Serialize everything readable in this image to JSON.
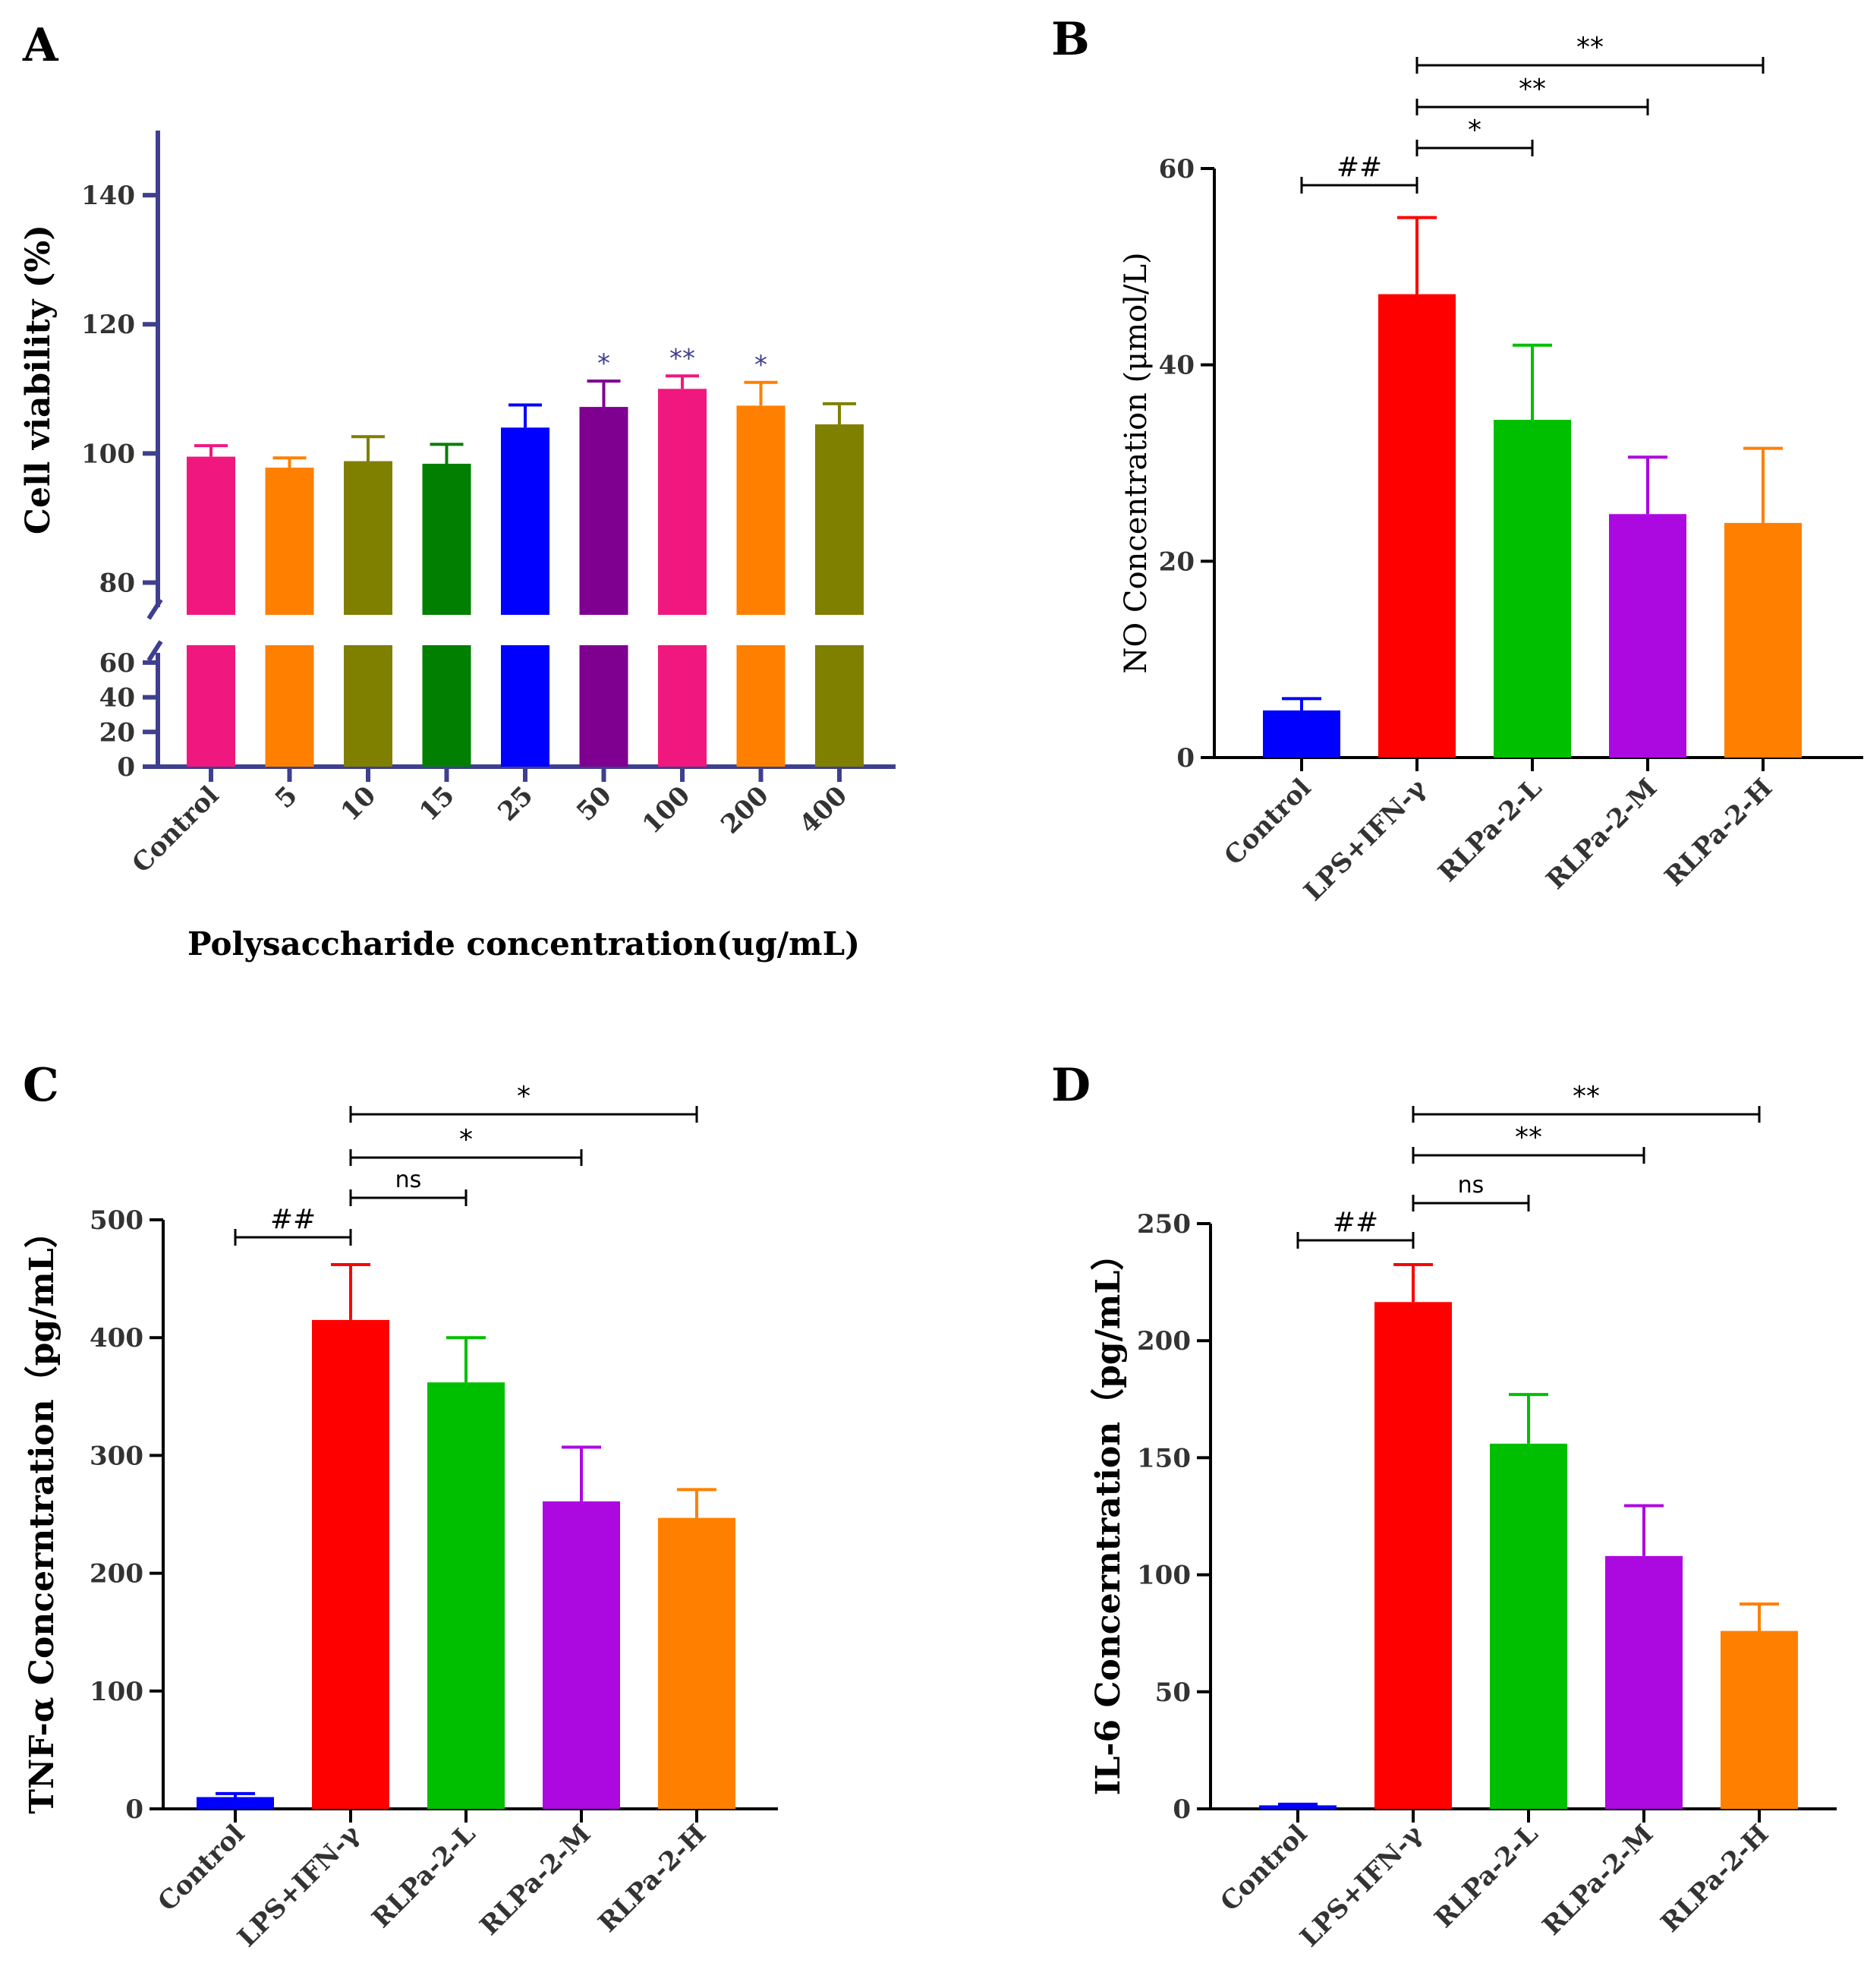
{
  "chart_data": [
    {
      "panel": "A",
      "type": "bar",
      "title": "",
      "xlabel": "Polysaccharide concentration(ug/mL)",
      "ylabel": "Cell viability (%)",
      "categories": [
        "Control",
        "5",
        "10",
        "15",
        "25",
        "50",
        "100",
        "200",
        "400"
      ],
      "values": [
        99.5,
        97.8,
        98.8,
        98.4,
        104,
        107.2,
        110,
        107.4,
        104.5
      ],
      "errors": [
        1.7,
        1.5,
        3.8,
        3.0,
        3.5,
        4.0,
        2.0,
        3.6,
        3.2
      ],
      "colors": [
        "#f0187e",
        "#ff8000",
        "#7f7f00",
        "#007f00",
        "#0000ff",
        "#7f0090",
        "#f0187e",
        "#ff8000",
        "#7f7f00"
      ],
      "significance": [
        "",
        "",
        "",
        "",
        "",
        "*",
        "**",
        "*",
        ""
      ],
      "axis_break": [
        70,
        75
      ],
      "ylim_lower": [
        0,
        70
      ],
      "ylim_upper": [
        75,
        150
      ],
      "yticks_lower": [
        0,
        20,
        40,
        60
      ],
      "yticks_upper": [
        80,
        100,
        120,
        140
      ]
    },
    {
      "panel": "B",
      "type": "bar",
      "title": "",
      "xlabel": "",
      "ylabel": "NO Concentration (μmol/L)",
      "categories": [
        "Control",
        "LPS+IFN-γ",
        "RLPa-2-L",
        "RLPa-2-M",
        "RLPa-2-H"
      ],
      "values": [
        4.8,
        47.2,
        34.4,
        24.8,
        23.9
      ],
      "errors": [
        1.2,
        7.8,
        7.6,
        5.8,
        7.6
      ],
      "colors": [
        "#0000ff",
        "#ff0000",
        "#00bf00",
        "#ac08e0",
        "#ff8000"
      ],
      "ylim": [
        0,
        60
      ],
      "yticks": [
        0,
        20,
        40,
        60
      ],
      "brackets": [
        {
          "from": 0,
          "to": 1,
          "label": "##",
          "level": 0
        },
        {
          "from": 1,
          "to": 2,
          "label": "*",
          "level": 1
        },
        {
          "from": 1,
          "to": 3,
          "label": "**",
          "level": 2
        },
        {
          "from": 1,
          "to": 4,
          "label": "**",
          "level": 3
        }
      ]
    },
    {
      "panel": "C",
      "type": "bar",
      "title": "",
      "xlabel": "",
      "ylabel": "TNF-α Concerntration（pg/mL）",
      "categories": [
        "Control",
        "LPS+IFN-γ",
        "RLPa-2-L",
        "RLPa-2-M",
        "RLPa-2-H"
      ],
      "values": [
        10,
        415,
        362,
        261,
        247
      ],
      "errors": [
        3,
        47,
        38,
        46,
        24
      ],
      "colors": [
        "#0000ff",
        "#ff0000",
        "#00bf00",
        "#ac08e0",
        "#ff8000"
      ],
      "ylim": [
        0,
        500
      ],
      "yticks": [
        0,
        100,
        200,
        300,
        400,
        500
      ],
      "brackets": [
        {
          "from": 0,
          "to": 1,
          "label": "##",
          "level": 0
        },
        {
          "from": 1,
          "to": 2,
          "label": "ns",
          "level": 1
        },
        {
          "from": 1,
          "to": 3,
          "label": "*",
          "level": 2
        },
        {
          "from": 1,
          "to": 4,
          "label": "*",
          "level": 3
        }
      ]
    },
    {
      "panel": "D",
      "type": "bar",
      "title": "",
      "xlabel": "",
      "ylabel": "IL-6 Concerntration（pg/mL）",
      "categories": [
        "Control",
        "LPS+IFN-γ",
        "RLPa-2-L",
        "RLPa-2-M",
        "RLPa-2-H"
      ],
      "values": [
        1.5,
        216.5,
        156,
        108,
        76
      ],
      "errors": [
        0.5,
        16,
        21,
        21.5,
        11.5
      ],
      "colors": [
        "#0000ff",
        "#ff0000",
        "#00bf00",
        "#ac08e0",
        "#ff8000"
      ],
      "ylim": [
        0,
        250
      ],
      "yticks": [
        0,
        50,
        100,
        150,
        200,
        250
      ],
      "brackets": [
        {
          "from": 0,
          "to": 1,
          "label": "##",
          "level": 0
        },
        {
          "from": 1,
          "to": 2,
          "label": "ns",
          "level": 1
        },
        {
          "from": 1,
          "to": 3,
          "label": "**",
          "level": 2
        },
        {
          "from": 1,
          "to": 4,
          "label": "**",
          "level": 3
        }
      ]
    }
  ]
}
